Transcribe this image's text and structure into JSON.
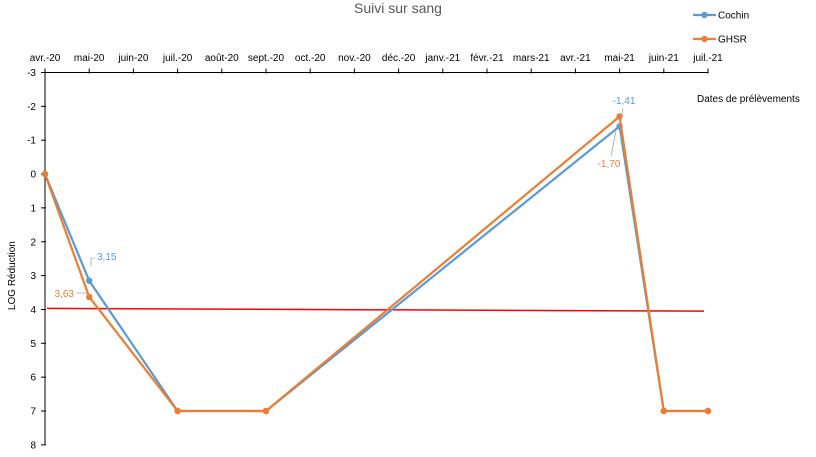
{
  "chart_data": {
    "type": "line",
    "title": "Suivi sur sang",
    "xlabel": "Dates de prélèvements",
    "ylabel": "LOG Réduction",
    "x_tick_labels": [
      "avr.-20",
      "mai-20",
      "juin-20",
      "juil.-20",
      "août-20",
      "sept.-20",
      "oct.-20",
      "nov.-20",
      "déc.-20",
      "janv.-21",
      "févr.-21",
      "mars-21",
      "avr.-21",
      "mai-21",
      "juin-21",
      "juil.-21"
    ],
    "y_ticks": [
      -3,
      -2,
      -1,
      0,
      1,
      2,
      3,
      4,
      5,
      6,
      7,
      8
    ],
    "y_tick_labels": [
      "-3",
      "-2",
      "-1",
      "0",
      "1",
      "2",
      "3",
      "4",
      "5",
      "6",
      "7",
      "8"
    ],
    "ylim": [
      -3,
      8
    ],
    "y_inverted": true,
    "x_axis_position": "top",
    "legend_position": "top-right",
    "series": [
      {
        "name": "Cochin",
        "color": "#5B9BD5",
        "points": [
          {
            "x": "2020-04-01",
            "y": 0
          },
          {
            "x": "2020-05-01",
            "y": 3.15,
            "label": "3,15"
          },
          {
            "x": "2020-07-01",
            "y": 7
          },
          {
            "x": "2020-09-01",
            "y": 7
          },
          {
            "x": "2021-05-01",
            "y": -1.41,
            "label": "-1,41"
          },
          {
            "x": "2021-06-01",
            "y": 7
          },
          {
            "x": "2021-07-01",
            "y": 7
          }
        ]
      },
      {
        "name": "GHSR",
        "color": "#ED7D31",
        "points": [
          {
            "x": "2020-04-01",
            "y": 0
          },
          {
            "x": "2020-05-01",
            "y": 3.63,
            "label": "3,63"
          },
          {
            "x": "2020-07-01",
            "y": 7
          },
          {
            "x": "2020-09-01",
            "y": 7
          },
          {
            "x": "2021-05-01",
            "y": -1.7,
            "label": "-1,70"
          },
          {
            "x": "2021-06-01",
            "y": 7
          },
          {
            "x": "2021-07-01",
            "y": 7
          }
        ]
      }
    ],
    "reference_line": {
      "color": "#FF0000",
      "y_start": 3.97,
      "y_end": 4.05
    }
  }
}
